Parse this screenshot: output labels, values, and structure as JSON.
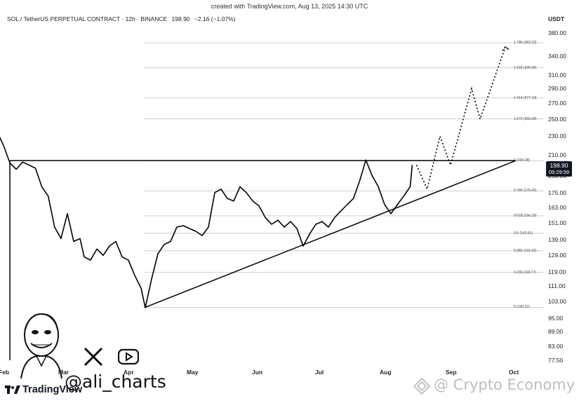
{
  "header": {
    "created_text": "created with TradingView.com, Aug 13, 2025 14:30 UTC",
    "symbol_line": "SOL / TetherUS PERPETUAL CONTRACT · 12h · BINANCE",
    "last_price": "198.90",
    "change": "−2.16 (−1.07%)",
    "currency": "USDT"
  },
  "price_badge": {
    "price": "198.90",
    "countdown": "09:29:59"
  },
  "author": {
    "handle": "@ali_charts"
  },
  "branding": {
    "tradingview": "TradingView",
    "watermark": "@ Crypto Economy"
  },
  "colors": {
    "line": "#000000",
    "grid": "#d8d8d8",
    "badge_bg": "#131722"
  },
  "chart_data": {
    "type": "line",
    "xlabel": "",
    "ylabel": "",
    "x_ticks": [
      "Feb",
      "Mar",
      "Apr",
      "May",
      "Jun",
      "Jul",
      "Aug",
      "Sep",
      "Oct"
    ],
    "y_ticks": [
      380,
      340,
      310,
      290,
      270,
      250,
      230,
      210,
      190,
      175,
      163,
      151,
      139,
      129,
      119,
      111,
      103,
      95,
      89,
      83,
      77.5
    ],
    "y_tick_labels": [
      "380.00",
      "340.00",
      "310.00",
      "290.00",
      "270.00",
      "250.00",
      "230.00",
      "210.00",
      "190.00",
      "175.00",
      "163.00",
      "151.00",
      "139.00",
      "129.00",
      "119.00",
      "111.00",
      "103.00",
      "95.00",
      "89.00",
      "83.00",
      "77.50"
    ],
    "y_scale": "log",
    "fib_levels": [
      {
        "label": "0 (100.22)",
        "value": 100.22
      },
      {
        "label": "0.236 (118.77)",
        "value": 118.77
      },
      {
        "label": "0.382 (131.92)",
        "value": 131.92
      },
      {
        "label": "0.5 (143.61)",
        "value": 143.61
      },
      {
        "label": "0.618 (156.33)",
        "value": 156.33
      },
      {
        "label": "0.786 (176.42)",
        "value": 176.42
      },
      {
        "label": "1 (204.38)",
        "value": 204.38
      },
      {
        "label": "1.272 (250.28)",
        "value": 250.28
      },
      {
        "label": "1.414 (277.18)",
        "value": 277.18
      },
      {
        "label": "1.618 (320.99)",
        "value": 320.99
      },
      {
        "label": "1.786 (362.23)",
        "value": 362.23
      }
    ],
    "series": [
      {
        "values": [
          [
            "Jan 28",
            235
          ],
          [
            "Jan 31",
            220
          ],
          [
            "Feb 3",
            202
          ],
          [
            "Feb 6",
            196
          ],
          [
            "Feb 9",
            203
          ],
          [
            "Feb 12",
            200
          ],
          [
            "Feb 15",
            197
          ],
          [
            "Feb 18",
            180
          ],
          [
            "Feb 21",
            172
          ],
          [
            "Feb 24",
            148
          ],
          [
            "Feb 27",
            140
          ],
          [
            "Mar 2",
            158
          ],
          [
            "Mar 5",
            138
          ],
          [
            "Mar 8",
            140
          ],
          [
            "Mar 10",
            128
          ],
          [
            "Mar 13",
            126
          ],
          [
            "Mar 16",
            133
          ],
          [
            "Mar 19",
            129
          ],
          [
            "Mar 22",
            135
          ],
          [
            "Mar 25",
            138
          ],
          [
            "Mar 28",
            128
          ],
          [
            "Mar 31",
            126
          ],
          [
            "Apr 3",
            117
          ],
          [
            "Apr 6",
            110
          ],
          [
            "Apr 8",
            100
          ],
          [
            "Apr 11",
            115
          ],
          [
            "Apr 14",
            130
          ],
          [
            "Apr 17",
            136
          ],
          [
            "Apr 20",
            138
          ],
          [
            "Apr 23",
            148
          ],
          [
            "Apr 26",
            149
          ],
          [
            "Apr 29",
            147
          ],
          [
            "May 2",
            145
          ],
          [
            "May 5",
            142
          ],
          [
            "May 8",
            148
          ],
          [
            "May 11",
            175
          ],
          [
            "May 14",
            178
          ],
          [
            "May 17",
            170
          ],
          [
            "May 20",
            168
          ],
          [
            "May 23",
            180
          ],
          [
            "May 26",
            175
          ],
          [
            "May 29",
            168
          ],
          [
            "Jun 1",
            164
          ],
          [
            "Jun 4",
            155
          ],
          [
            "Jun 7",
            150
          ],
          [
            "Jun 10",
            153
          ],
          [
            "Jun 13",
            148
          ],
          [
            "Jun 16",
            152
          ],
          [
            "Jun 19",
            147
          ],
          [
            "Jun 22",
            135
          ],
          [
            "Jun 25",
            143
          ],
          [
            "Jun 28",
            150
          ],
          [
            "Jul 1",
            152
          ],
          [
            "Jul 4",
            148
          ],
          [
            "Jul 7",
            155
          ],
          [
            "Jul 10",
            160
          ],
          [
            "Jul 13",
            165
          ],
          [
            "Jul 16",
            170
          ],
          [
            "Jul 19",
            185
          ],
          [
            "Jul 22",
            205
          ],
          [
            "Jul 25",
            190
          ],
          [
            "Jul 28",
            180
          ],
          [
            "Jul 31",
            165
          ],
          [
            "Aug 3",
            158
          ],
          [
            "Aug 6",
            165
          ],
          [
            "Aug 9",
            172
          ],
          [
            "Aug 12",
            180
          ],
          [
            "Aug 13",
            200
          ]
        ]
      },
      {
        "values": [
          [
            "Aug 15",
            200
          ],
          [
            "Aug 20",
            178
          ],
          [
            "Aug 26",
            230
          ],
          [
            "Aug 31",
            200
          ],
          [
            "Sep 10",
            290
          ],
          [
            "Sep 14",
            250
          ],
          [
            "Sep 26",
            355
          ],
          [
            "Sep 28",
            350
          ]
        ]
      }
    ],
    "lines": [
      {
        "from": [
          "Feb 3",
          204.38
        ],
        "to": [
          "Oct 1",
          204.38
        ]
      },
      {
        "from": [
          "Apr 8",
          100.22
        ],
        "to": [
          "Oct 1",
          204.38
        ]
      },
      {
        "from": [
          "Feb 3",
          204.38
        ],
        "to": [
          "Feb 3",
          77.5
        ]
      }
    ],
    "ylim": [
      77.5,
      400
    ],
    "grid": false
  }
}
